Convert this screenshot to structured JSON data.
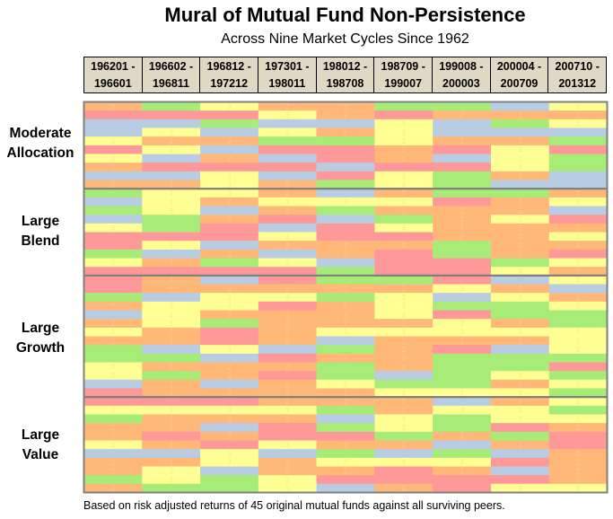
{
  "chart_data": {
    "type": "heatmap",
    "title": "Mural of Mutual Fund Non-Persistence",
    "subtitle": "Across Nine Market Cycles Since 1962",
    "footnote": "Based on risk adjusted returns  of 45 original mutual  funds against all surviving  peers.",
    "columns": [
      {
        "start": "196201 -",
        "end": "196601"
      },
      {
        "start": "196602 -",
        "end": "196811"
      },
      {
        "start": "196812 -",
        "end": "197212"
      },
      {
        "start": "197301 -",
        "end": "198011"
      },
      {
        "start": "198012 -",
        "end": "198708"
      },
      {
        "start": "198709 -",
        "end": "199007"
      },
      {
        "start": "199008 -",
        "end": "200003"
      },
      {
        "start": "200004 -",
        "end": "200709"
      },
      {
        "start": "200710 -",
        "end": "201312"
      }
    ],
    "value_meaning": "quintile rank within cycle",
    "color_scale": {
      "1": "#a8ec78",
      "2": "#ffb877",
      "3": "#ffff94",
      "4": "#b8cce4",
      "5": "#ff9898"
    },
    "label_colors": {
      "2": "#ffc998",
      "3": "#f2f27a"
    },
    "groups": [
      {
        "label_line1": "Moderate",
        "label_line2": "Allocation",
        "rows": [
          [
            2,
            1,
            3,
            2,
            2,
            1,
            1,
            4,
            3
          ],
          [
            5,
            5,
            5,
            3,
            2,
            5,
            2,
            2,
            2
          ],
          [
            4,
            4,
            1,
            4,
            4,
            3,
            4,
            1,
            3
          ],
          [
            4,
            3,
            4,
            3,
            2,
            3,
            4,
            4,
            4
          ],
          [
            3,
            2,
            2,
            1,
            1,
            3,
            2,
            2,
            1
          ],
          [
            5,
            3,
            4,
            5,
            5,
            2,
            5,
            3,
            5
          ],
          [
            3,
            4,
            2,
            4,
            5,
            2,
            4,
            3,
            1
          ],
          [
            2,
            5,
            5,
            5,
            4,
            5,
            5,
            3,
            1
          ],
          [
            4,
            4,
            3,
            4,
            5,
            3,
            1,
            2,
            4
          ],
          [
            2,
            2,
            3,
            2,
            1,
            3,
            1,
            4,
            4
          ]
        ]
      },
      {
        "label_line1": "Large",
        "label_line2": "Blend",
        "rows": [
          [
            1,
            3,
            3,
            2,
            4,
            2,
            1,
            1,
            2
          ],
          [
            4,
            3,
            2,
            3,
            3,
            3,
            5,
            2,
            3
          ],
          [
            1,
            3,
            4,
            2,
            1,
            2,
            2,
            2,
            4
          ],
          [
            4,
            1,
            2,
            5,
            4,
            1,
            2,
            3,
            5
          ],
          [
            3,
            1,
            5,
            4,
            5,
            3,
            2,
            2,
            2
          ],
          [
            5,
            5,
            5,
            3,
            5,
            5,
            2,
            2,
            3
          ],
          [
            5,
            3,
            4,
            2,
            2,
            2,
            1,
            2,
            2
          ],
          [
            1,
            4,
            2,
            4,
            2,
            5,
            1,
            2,
            5
          ],
          [
            3,
            2,
            1,
            3,
            4,
            5,
            5,
            1,
            3
          ],
          [
            5,
            5,
            5,
            5,
            1,
            5,
            5,
            3,
            2
          ]
        ]
      },
      {
        "label_line1": "Large",
        "label_line2": "Growth",
        "rows": [
          [
            5,
            2,
            4,
            5,
            1,
            1,
            5,
            4,
            3
          ],
          [
            5,
            2,
            2,
            2,
            2,
            2,
            3,
            2,
            4
          ],
          [
            1,
            4,
            3,
            3,
            1,
            3,
            4,
            3,
            2
          ],
          [
            2,
            3,
            3,
            5,
            2,
            3,
            1,
            1,
            3
          ],
          [
            4,
            3,
            2,
            2,
            2,
            3,
            5,
            1,
            1
          ],
          [
            2,
            3,
            1,
            2,
            2,
            2,
            3,
            2,
            1
          ],
          [
            3,
            2,
            5,
            2,
            3,
            3,
            3,
            3,
            3
          ],
          [
            2,
            2,
            5,
            2,
            4,
            2,
            2,
            2,
            3
          ],
          [
            1,
            4,
            3,
            4,
            1,
            2,
            5,
            4,
            3
          ],
          [
            1,
            1,
            4,
            5,
            2,
            2,
            1,
            1,
            1
          ],
          [
            3,
            2,
            2,
            2,
            1,
            2,
            1,
            1,
            5
          ],
          [
            3,
            1,
            2,
            5,
            1,
            4,
            1,
            3,
            1
          ],
          [
            4,
            2,
            4,
            2,
            3,
            1,
            1,
            2,
            3
          ],
          [
            5,
            2,
            2,
            2,
            2,
            3,
            3,
            3,
            1
          ]
        ]
      },
      {
        "label_line1": "Large",
        "label_line2": "Value",
        "rows": [
          [
            5,
            5,
            5,
            2,
            2,
            2,
            4,
            2,
            3
          ],
          [
            3,
            3,
            3,
            3,
            1,
            2,
            3,
            3,
            1
          ],
          [
            1,
            2,
            2,
            2,
            4,
            3,
            1,
            3,
            3
          ],
          [
            2,
            2,
            4,
            5,
            1,
            3,
            1,
            5,
            2
          ],
          [
            2,
            5,
            2,
            5,
            5,
            1,
            2,
            1,
            5
          ],
          [
            3,
            2,
            5,
            3,
            2,
            2,
            4,
            2,
            5
          ],
          [
            4,
            4,
            3,
            4,
            1,
            4,
            1,
            4,
            2
          ],
          [
            2,
            2,
            3,
            2,
            3,
            3,
            3,
            5,
            2
          ],
          [
            2,
            3,
            4,
            2,
            2,
            5,
            2,
            4,
            2
          ],
          [
            1,
            3,
            1,
            3,
            5,
            5,
            5,
            5,
            2
          ],
          [
            2,
            1,
            1,
            3,
            4,
            2,
            5,
            3,
            3
          ]
        ]
      }
    ]
  }
}
